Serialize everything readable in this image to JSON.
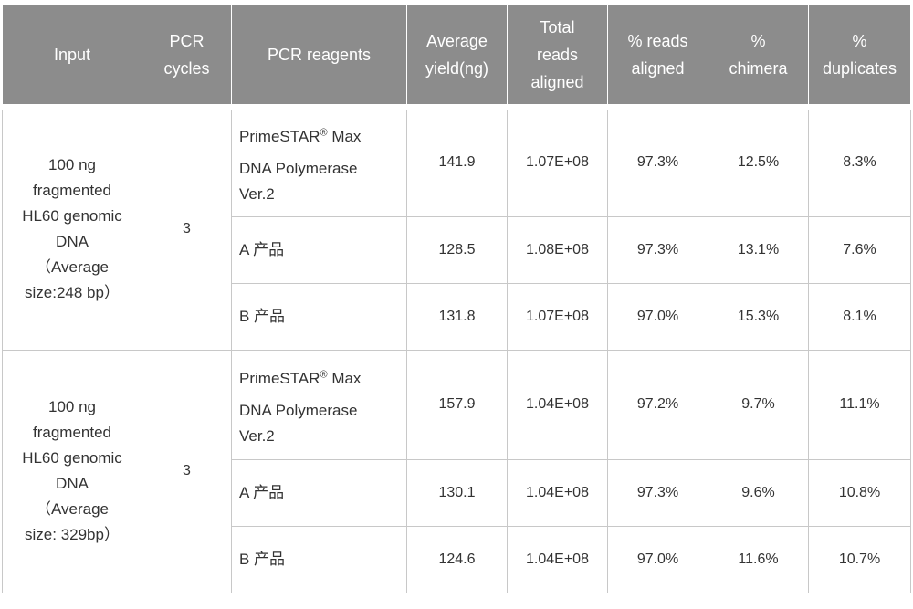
{
  "headers": {
    "input": "Input",
    "pcr_cycles": [
      "PCR",
      "cycles"
    ],
    "pcr_reagents": "PCR  reagents",
    "avg_yield": [
      "Average",
      "yield(ng)"
    ],
    "total_reads": [
      "Total",
      "reads",
      "aligned"
    ],
    "pct_reads": [
      "% reads",
      "aligned"
    ],
    "pct_chimera": [
      "%",
      "chimera"
    ],
    "pct_dup": [
      "%",
      "duplicates"
    ]
  },
  "groups": [
    {
      "input_lines": [
        "100  ng",
        "fragmented",
        "HL60 genomic",
        "DNA",
        "（Average",
        "size:248  bp）"
      ],
      "cycles": "3",
      "rows": [
        {
          "reagent_l1": "PrimeSTAR",
          "reagent_sup": "®",
          "reagent_l1b": " Max",
          "reagent_l2": "DNA  Polymerase",
          "reagent_l3": "Ver.2",
          "yield": "141.9",
          "total": "1.07E+08",
          "aligned": "97.3%",
          "chimera": "12.5%",
          "dup": "8.3%"
        },
        {
          "reagent": "A 产品",
          "yield": "128.5",
          "total": "1.08E+08",
          "aligned": "97.3%",
          "chimera": "13.1%",
          "dup": "7.6%"
        },
        {
          "reagent": "B 产品",
          "yield": "131.8",
          "total": "1.07E+08",
          "aligned": "97.0%",
          "chimera": "15.3%",
          "dup": "8.1%"
        }
      ]
    },
    {
      "input_lines": [
        "100  ng",
        "fragmented",
        "HL60 genomic",
        "DNA",
        "（Average",
        "size: 329bp）"
      ],
      "cycles": "3",
      "rows": [
        {
          "reagent_l1": "PrimeSTAR",
          "reagent_sup": "®",
          "reagent_l1b": " Max",
          "reagent_l2": "DNA  Polymerase",
          "reagent_l3": "Ver.2",
          "yield": "157.9",
          "total": "1.04E+08",
          "aligned": "97.2%",
          "chimera": "9.7%",
          "dup": "11.1%"
        },
        {
          "reagent": "A 产品",
          "yield": "130.1",
          "total": "1.04E+08",
          "aligned": "97.3%",
          "chimera": "9.6%",
          "dup": "10.8%"
        },
        {
          "reagent": "B 产品",
          "yield": "124.6",
          "total": "1.04E+08",
          "aligned": "97.0%",
          "chimera": "11.6%",
          "dup": "10.7%"
        }
      ]
    }
  ]
}
